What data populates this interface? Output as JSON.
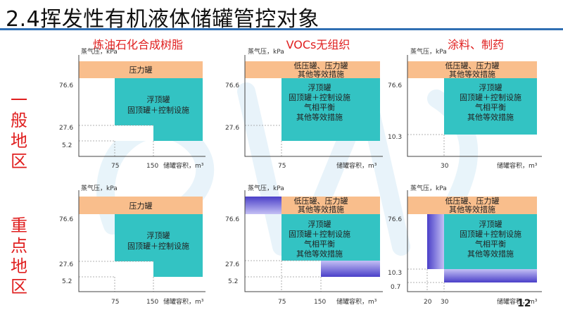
{
  "title": "2.4挥发性有机液体储罐管控对象",
  "columns": [
    "炼油石化合成树脂",
    "VOCs无组织",
    "涂料、制药"
  ],
  "rows": [
    "一般地区",
    "重点地区"
  ],
  "page_number": "12",
  "axis": {
    "y_label": "蒸气压，kPa",
    "x_label": "储罐容积，m³"
  },
  "colors": {
    "orange": "#f9be8c",
    "teal": "#33c3c3",
    "purple_dark": "#4a3fc8",
    "purple_light": "#c4c0f5",
    "title_red": "#e02020",
    "rule_blue": "#2f6fb3"
  },
  "panels": [
    {
      "id": "general-petro",
      "y_ticks": [
        "76.6",
        "27.6",
        "5.2"
      ],
      "x_ticks": [
        "75",
        "150"
      ],
      "top_text": [
        "压力罐"
      ],
      "main_text": [
        "浮顶罐",
        "固顶罐＋控制设施"
      ]
    },
    {
      "id": "general-vocs",
      "y_ticks": [
        "76.6",
        "27.6"
      ],
      "x_ticks": [
        "75"
      ],
      "top_text": [
        "低压罐、压力罐",
        "其他等效措施"
      ],
      "main_text": [
        "浮顶罐",
        "固顶罐＋控制设施",
        "气相平衡",
        "其他等效措施"
      ]
    },
    {
      "id": "general-coating",
      "y_ticks": [
        "76.6",
        "10.3"
      ],
      "x_ticks": [
        "30"
      ],
      "top_text": [
        "低压罐、压力罐",
        "其他等效措施"
      ],
      "main_text": [
        "浮顶罐",
        "固顶罐＋控制设施",
        "气相平衡",
        "其他等效措施"
      ]
    },
    {
      "id": "key-petro",
      "y_ticks": [
        "76.6",
        "27.6",
        "5.2"
      ],
      "x_ticks": [
        "75",
        "150"
      ],
      "top_text": [
        "压力罐"
      ],
      "main_text": [
        "浮顶罐",
        "固顶罐＋控制设施"
      ]
    },
    {
      "id": "key-vocs",
      "y_ticks": [
        "76.6",
        "27.6",
        "5.2"
      ],
      "x_ticks": [
        "75",
        "150"
      ],
      "top_text": [
        "低压罐、压力罐",
        "其他等效措施"
      ],
      "main_text": [
        "浮顶罐",
        "固顶罐＋控制设施",
        "气相平衡",
        "其他等效措施"
      ]
    },
    {
      "id": "key-coating",
      "y_ticks": [
        "76.6",
        "10.3",
        "0.7"
      ],
      "x_ticks": [
        "20",
        "30"
      ],
      "top_text": [
        "低压罐、压力罐",
        "其他等效措施"
      ],
      "main_text": [
        "浮顶罐",
        "固顶罐＋控制设施",
        "气相平衡",
        "其他等效措施"
      ]
    }
  ]
}
